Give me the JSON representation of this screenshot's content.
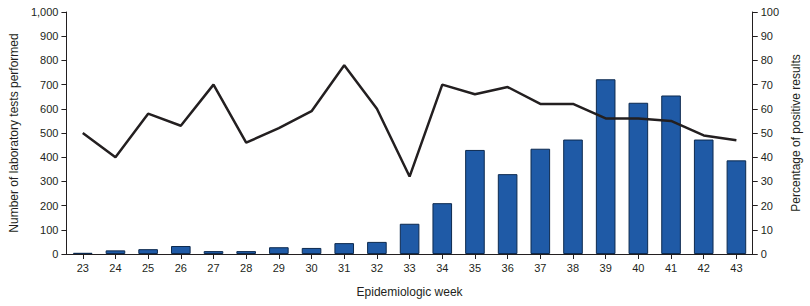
{
  "chart_data": {
    "type": "bar",
    "xlabel": "Epidemiologic week",
    "ylabel": "Number of laboratory tests performed",
    "y2label": "Percentage of positive results",
    "categories": [
      "23",
      "24",
      "25",
      "26",
      "27",
      "28",
      "29",
      "30",
      "31",
      "32",
      "33",
      "34",
      "35",
      "36",
      "37",
      "38",
      "39",
      "40",
      "41",
      "42",
      "43"
    ],
    "series": [
      {
        "type": "bar",
        "axis": "y",
        "color": "#1f5aa6",
        "values": [
          5,
          15,
          20,
          33,
          12,
          12,
          28,
          25,
          45,
          50,
          125,
          210,
          430,
          330,
          435,
          473,
          722,
          625,
          655,
          473,
          387
        ]
      },
      {
        "type": "line",
        "axis": "y2",
        "color": "#231f20",
        "marker": "none",
        "line_style": "solid",
        "values": [
          50,
          40,
          58,
          53,
          70,
          46,
          52,
          59,
          78,
          60,
          32,
          70,
          66,
          69,
          62,
          62,
          56,
          56,
          55,
          49,
          47
        ]
      }
    ],
    "ylim": [
      0,
      1000
    ],
    "yticks": [
      0,
      100,
      200,
      300,
      400,
      500,
      600,
      700,
      800,
      900,
      1000
    ],
    "y2lim": [
      0,
      100
    ],
    "y2ticks": [
      0,
      10,
      20,
      30,
      40,
      50,
      60,
      70,
      80,
      90,
      100
    ],
    "grid": false
  }
}
